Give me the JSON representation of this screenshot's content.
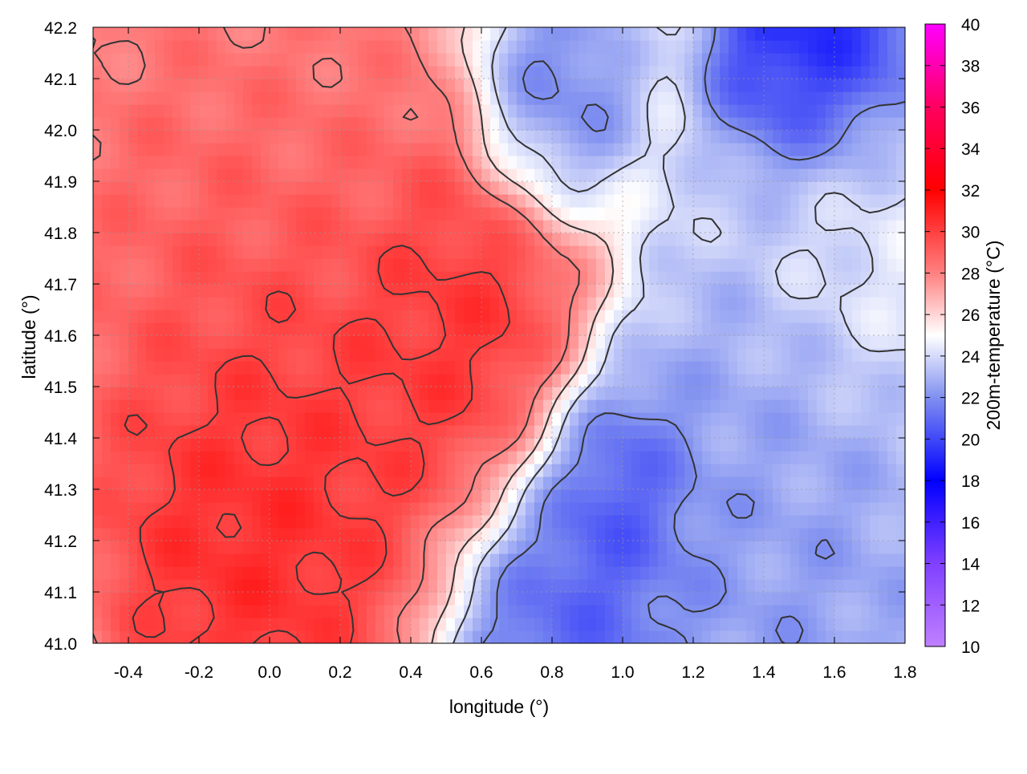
{
  "chart_data": {
    "type": "heatmap",
    "title": "",
    "xlabel": "longitude (°)",
    "ylabel": "latitude (°)",
    "colorbar_label": "200m-temperature (°C)",
    "xlim": [
      -0.5,
      1.8
    ],
    "ylim": [
      41.0,
      42.2
    ],
    "x_ticks": [
      "-0.4",
      "-0.2",
      "0.0",
      "0.2",
      "0.4",
      "0.6",
      "0.8",
      "1.0",
      "1.2",
      "1.4",
      "1.6",
      "1.8"
    ],
    "x_tick_values": [
      -0.4,
      -0.2,
      0.0,
      0.2,
      0.4,
      0.6,
      0.8,
      1.0,
      1.2,
      1.4,
      1.6,
      1.8
    ],
    "y_ticks": [
      "41.0",
      "41.1",
      "41.2",
      "41.3",
      "41.4",
      "41.5",
      "41.6",
      "41.7",
      "41.8",
      "41.9",
      "42.0",
      "42.1",
      "42.2"
    ],
    "y_tick_values": [
      41.0,
      41.1,
      41.2,
      41.3,
      41.4,
      41.5,
      41.6,
      41.7,
      41.8,
      41.9,
      42.0,
      42.1,
      42.2
    ],
    "colorbar_range": [
      10,
      40
    ],
    "colorbar_ticks": [
      "10",
      "12",
      "14",
      "16",
      "18",
      "20",
      "22",
      "24",
      "26",
      "28",
      "30",
      "32",
      "34",
      "36",
      "38",
      "40"
    ],
    "colorbar_tick_values": [
      10,
      12,
      14,
      16,
      18,
      20,
      22,
      24,
      26,
      28,
      30,
      32,
      34,
      36,
      38,
      40
    ],
    "colormap": [
      {
        "value": 10,
        "color": "#c080ff"
      },
      {
        "value": 14,
        "color": "#8040ff"
      },
      {
        "value": 18,
        "color": "#0000ff"
      },
      {
        "value": 22,
        "color": "#8090f0"
      },
      {
        "value": 25,
        "color": "#ffffff"
      },
      {
        "value": 28,
        "color": "#ff8080"
      },
      {
        "value": 32,
        "color": "#ff0000"
      },
      {
        "value": 36,
        "color": "#ff0060"
      },
      {
        "value": 40,
        "color": "#ff00ff"
      }
    ],
    "grid": true,
    "contours": true,
    "contour_levels": [
      22,
      24,
      26,
      28,
      30
    ],
    "field_features": [
      {
        "lon": -0.05,
        "lat": 41.25,
        "temp": 31.5,
        "spread": 0.35
      },
      {
        "lon": 0.05,
        "lat": 41.6,
        "temp": 30.0,
        "spread": 0.4
      },
      {
        "lon": 0.55,
        "lat": 41.62,
        "temp": 31.0,
        "spread": 0.3
      },
      {
        "lon": -0.3,
        "lat": 41.85,
        "temp": 29.0,
        "spread": 0.35
      },
      {
        "lon": 0.15,
        "lat": 42.05,
        "temp": 28.5,
        "spread": 0.3
      },
      {
        "lon": 1.0,
        "lat": 41.3,
        "temp": 19.0,
        "spread": 0.18
      },
      {
        "lon": 0.85,
        "lat": 41.05,
        "temp": 20.0,
        "spread": 0.25
      },
      {
        "lon": 1.45,
        "lat": 41.05,
        "temp": 22.0,
        "spread": 0.45
      },
      {
        "lon": 1.3,
        "lat": 41.45,
        "temp": 22.5,
        "spread": 0.3
      },
      {
        "lon": 1.55,
        "lat": 42.15,
        "temp": 18.0,
        "spread": 0.22
      },
      {
        "lon": 0.8,
        "lat": 42.05,
        "temp": 21.0,
        "spread": 0.18
      },
      {
        "lon": 1.65,
        "lat": 41.8,
        "temp": 24.5,
        "spread": 0.25
      }
    ]
  }
}
